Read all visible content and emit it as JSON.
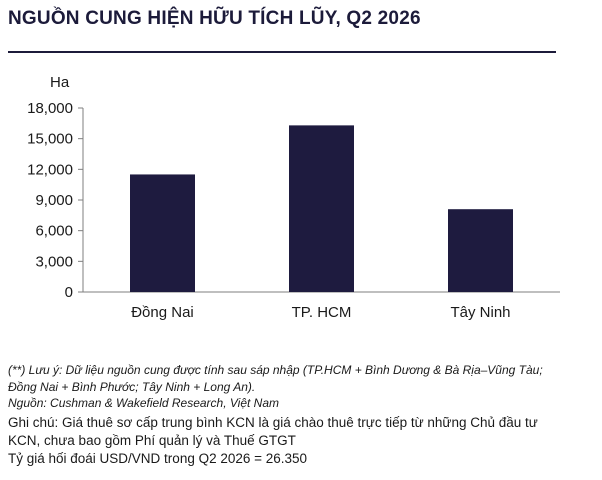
{
  "title": "NGUỒN CUNG HIỆN HỮU TÍCH LŨY, Q2 2026",
  "colors": {
    "bar": "#1e1b3f",
    "title": "#1c1b3a",
    "axis": "#7f7f7f",
    "text": "#1a1a1a"
  },
  "chart_data": {
    "type": "bar",
    "title": "",
    "ylabel": "Ha",
    "xlabel": "",
    "categories": [
      "Đồng Nai",
      "TP. HCM",
      "Tây Ninh"
    ],
    "values": [
      11500,
      16300,
      8100
    ],
    "ylim": [
      0,
      18000
    ],
    "yticks": [
      0,
      3000,
      6000,
      9000,
      12000,
      15000,
      18000
    ],
    "ytick_labels": [
      "0",
      "3,000",
      "6,000",
      "9,000",
      "12,000",
      "15,000",
      "18,000"
    ],
    "grid": false,
    "legend": "none"
  },
  "notes": {
    "line1": "(**) Lưu ý: Dữ liệu nguồn cung được tính sau sáp nhập (TP.HCM + Bình Dương & Bà Rịa–Vũng Tàu;",
    "line2": "Đồng Nai + Bình Phước; Tây Ninh + Long An).",
    "source": "Nguồn: Cushman & Wakefield Research, Việt Nam",
    "remark1": "Ghi chú: Giá thuê sơ cấp trung bình KCN là giá chào thuê trực tiếp từ những Chủ đầu tư",
    "remark2": "KCN, chưa bao gồm Phí quản lý và Thuế GTGT",
    "fx": "Tỷ giá hối đoái USD/VND trong Q2 2026 = 26.350"
  }
}
